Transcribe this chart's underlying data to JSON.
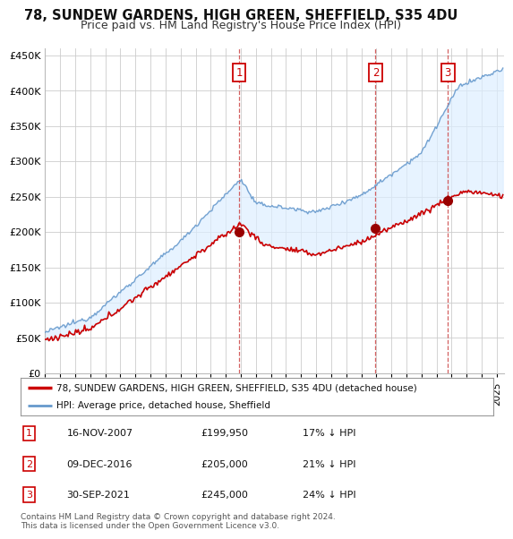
{
  "title": "78, SUNDEW GARDENS, HIGH GREEN, SHEFFIELD, S35 4DU",
  "subtitle": "Price paid vs. HM Land Registry's House Price Index (HPI)",
  "title_fontsize": 10.5,
  "subtitle_fontsize": 9,
  "ylim": [
    0,
    460000
  ],
  "yticks": [
    0,
    50000,
    100000,
    150000,
    200000,
    250000,
    300000,
    350000,
    400000,
    450000
  ],
  "xlim_start": 1995.0,
  "xlim_end": 2025.5,
  "transactions": [
    {
      "num": 1,
      "date": 2007.88,
      "price": 199950,
      "label": "1"
    },
    {
      "num": 2,
      "date": 2016.94,
      "price": 205000,
      "label": "2"
    },
    {
      "num": 3,
      "date": 2021.75,
      "price": 245000,
      "label": "3"
    }
  ],
  "vline_color": "#cc4444",
  "hpi_line_color": "#6699cc",
  "hpi_fill_color": "#ddeeff",
  "price_line_color": "#cc0000",
  "legend_entries": [
    "78, SUNDEW GARDENS, HIGH GREEN, SHEFFIELD, S35 4DU (detached house)",
    "HPI: Average price, detached house, Sheffield"
  ],
  "table_rows": [
    {
      "num": "1",
      "date": "16-NOV-2007",
      "price": "£199,950",
      "hpi": "17% ↓ HPI"
    },
    {
      "num": "2",
      "date": "09-DEC-2016",
      "price": "£205,000",
      "hpi": "21% ↓ HPI"
    },
    {
      "num": "3",
      "date": "30-SEP-2021",
      "price": "£245,000",
      "hpi": "24% ↓ HPI"
    }
  ],
  "footer": "Contains HM Land Registry data © Crown copyright and database right 2024.\nThis data is licensed under the Open Government Licence v3.0.",
  "background_color": "#ffffff",
  "grid_color": "#cccccc"
}
